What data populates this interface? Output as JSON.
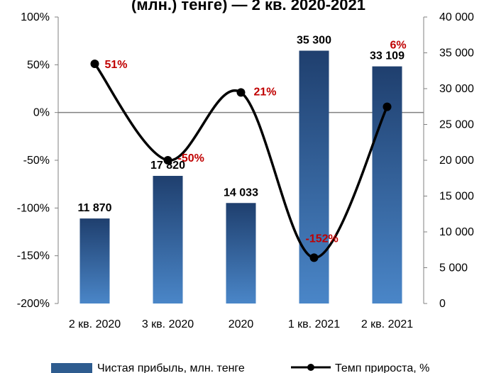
{
  "chart_data": {
    "type": "bar",
    "title": "(млн.) тенге) — 2 кв. 2020-2021",
    "categories": [
      "2 кв. 2020",
      "3 кв. 2020",
      "2020",
      "1 кв. 2021",
      "2 кв. 2021"
    ],
    "series": [
      {
        "name": "Чистая прибыль, млн. тенге",
        "type": "bar",
        "axis": "right",
        "values": [
          11870,
          17820,
          14033,
          35300,
          33109
        ],
        "labels": [
          "11 870",
          "17 820",
          "14 033",
          "35 300",
          "33 109"
        ],
        "color": "#2e5c8f"
      },
      {
        "name": "Темп прироста, %",
        "type": "line",
        "axis": "left",
        "values": [
          51,
          -50,
          21,
          -152,
          6
        ],
        "labels": [
          "51%",
          "-50%",
          "21%",
          "-152%",
          "6%"
        ],
        "color": "#000000",
        "label_color": "#c00000"
      }
    ],
    "y_left": {
      "min": -200,
      "max": 100,
      "ticks": [
        "100%",
        "50%",
        "0%",
        "-50%",
        "-100%",
        "-150%",
        "-200%"
      ]
    },
    "y_right": {
      "min": 0,
      "max": 40000,
      "ticks": [
        "40 000",
        "35 000",
        "30 000",
        "25 000",
        "20 000",
        "15 000",
        "10 000",
        "5 000",
        "0"
      ]
    },
    "zero_line": true,
    "grid": false,
    "legend_position": "bottom"
  }
}
